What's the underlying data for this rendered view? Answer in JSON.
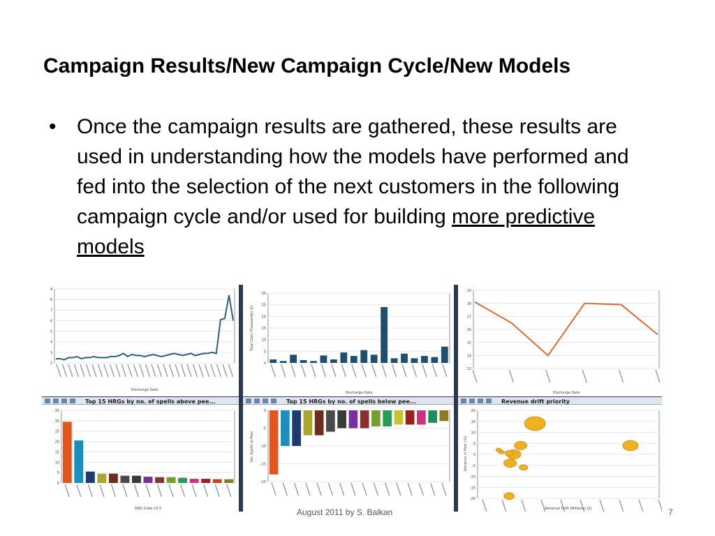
{
  "slide": {
    "title": "Campaign Results/New Campaign Cycle/New Models",
    "bullet_text": "Once the campaign results are gathered, these results are used in understanding how the models have performed  and fed into the selection of the next customers in  the following campaign cycle and/or used for building ",
    "bullet_link": "more predictive models",
    "footer": "August 2011 by S. Balkan",
    "page_number": "7"
  },
  "dashboard": {
    "toolbar_titles": [
      "Top 15 HRGs by no. of spells above pee...",
      "Top 15 HRGs by no. of spells below pee...",
      "Revenue drift priority"
    ]
  },
  "chart_data": [
    {
      "type": "line",
      "xlabel": "Discharge Date",
      "ylim": [
        2,
        9
      ],
      "yticks": [
        2,
        3,
        4,
        5,
        6,
        7,
        8,
        9
      ],
      "values": [
        2.4,
        2.4,
        2.3,
        2.5,
        2.5,
        2.6,
        2.4,
        2.5,
        2.5,
        2.6,
        2.5,
        2.5,
        2.5,
        2.6,
        2.6,
        2.7,
        2.9,
        2.6,
        2.8,
        2.7,
        2.7,
        2.6,
        2.7,
        2.8,
        2.7,
        2.6,
        2.7,
        2.8,
        2.9,
        2.8,
        2.7,
        2.8,
        2.9,
        2.7,
        2.8,
        2.9,
        2.9,
        3.0,
        2.9,
        6.1,
        6.2,
        8.4,
        6.0
      ]
    },
    {
      "type": "bar",
      "xlabel": "Discharge Date",
      "ylabel": "Total Cost (Thousands) (£)",
      "ylim": [
        0,
        30
      ],
      "yticks": [
        0,
        5,
        10,
        15,
        20,
        25,
        30
      ],
      "values": [
        1.5,
        0.8,
        3.5,
        1.2,
        0.8,
        3.2,
        1.5,
        4.5,
        3.0,
        5.5,
        3.5,
        24.0,
        2.0,
        4.0,
        2.0,
        3.0,
        2.5,
        7.0
      ]
    },
    {
      "type": "line",
      "xlabel": "Discharge Date",
      "ylim": [
        13,
        19
      ],
      "yticks": [
        13,
        14,
        15,
        16,
        17,
        18,
        19
      ],
      "values": [
        18.1,
        16.5,
        14.0,
        18.0,
        17.9,
        15.6
      ]
    },
    {
      "type": "bar",
      "xlabel": "HRG Code v3.5",
      "ylim": [
        0,
        35
      ],
      "yticks": [
        0,
        5,
        10,
        15,
        20,
        25,
        30,
        35
      ],
      "values": [
        29.5,
        20.5,
        5.5,
        4.5,
        4.5,
        3.5,
        3.5,
        3.0,
        2.8,
        2.8,
        2.5,
        2.0,
        2.0,
        1.8,
        1.8
      ],
      "colors": [
        "#e0561c",
        "#1a8fbf",
        "#1f3a6e",
        "#a8a82e",
        "#6b2e1e",
        "#4a4a4a",
        "#3a3a3a",
        "#7a2fa0",
        "#8a3030",
        "#6fa030",
        "#2a9a5a",
        "#d03080",
        "#9a2020",
        "#c04020",
        "#8a7a20"
      ]
    },
    {
      "type": "bar",
      "ylabel": "Var. Spells to Peer",
      "ylim": [
        -20,
        0
      ],
      "yticks": [
        0,
        -5,
        -10,
        -15,
        -20
      ],
      "values": [
        -18,
        -10,
        -10,
        -7,
        -7,
        -6,
        -5,
        -5,
        -5,
        -4.5,
        -4.5,
        -4,
        -4,
        -4,
        -3.5,
        -3
      ],
      "colors": [
        "#e0561c",
        "#1a8fbf",
        "#1f3a6e",
        "#a8a82e",
        "#6b2e1e",
        "#4a4a4a",
        "#3a3a3a",
        "#7a2fa0",
        "#8a3030",
        "#6fa030",
        "#2a9a5a",
        "#c4c42e",
        "#9a2020",
        "#d03080",
        "#1a8f5a",
        "#8a7a20"
      ]
    },
    {
      "type": "scatter",
      "xlabel": "Revenue Drift (Millions) (£)",
      "ylabel": "Variance in Peer (%)",
      "ylim": [
        -20,
        20
      ],
      "yticks": [
        20,
        15,
        10,
        5,
        0,
        -5,
        -10,
        -15,
        -20
      ],
      "points": [
        {
          "x": 0.3,
          "y": 14,
          "r": 3.0
        },
        {
          "x": 1.3,
          "y": 4,
          "r": 2.2
        },
        {
          "x": 0.15,
          "y": 4,
          "r": 1.8
        },
        {
          "x": 0.08,
          "y": 0,
          "r": 2.0
        },
        {
          "x": 0.03,
          "y": 0.5,
          "r": 1.2
        },
        {
          "x": -0.05,
          "y": 1,
          "r": 0.8
        },
        {
          "x": -0.08,
          "y": 2,
          "r": 0.8
        },
        {
          "x": 0.04,
          "y": -4,
          "r": 1.8
        },
        {
          "x": 0.18,
          "y": -6,
          "r": 1.2
        },
        {
          "x": 0.03,
          "y": -19,
          "r": 1.5
        }
      ]
    }
  ]
}
